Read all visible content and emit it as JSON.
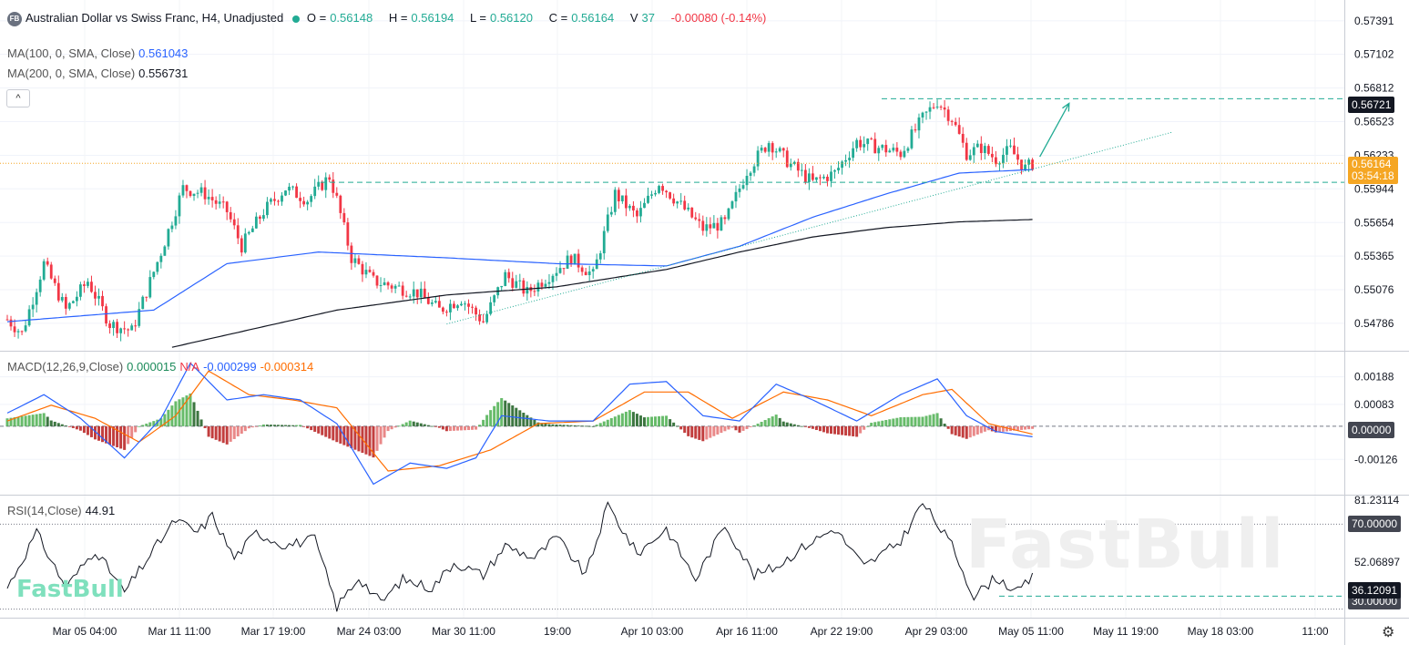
{
  "header": {
    "logo_text": "FB",
    "title": "Australian Dollar vs Swiss Franc, H4, Unadjusted",
    "o_label": "O =",
    "o_value": "0.56148",
    "h_label": "H =",
    "h_value": "0.56194",
    "l_label": "L =",
    "l_value": "0.56120",
    "c_label": "C =",
    "c_value": "0.56164",
    "v_label": "V",
    "v_value": "37",
    "change": "-0.00080 (-0.14%)"
  },
  "ma100": {
    "label": "MA(100, 0, SMA, Close)",
    "value": "0.561043",
    "color": "#2962ff"
  },
  "ma200": {
    "label": "MA(200, 0, SMA, Close)",
    "value": "0.556731",
    "color": "#131722"
  },
  "collapse_glyph": "^",
  "macd_legend": {
    "label": "MACD(12,26,9,Close)",
    "hist": "0.000015",
    "na": "N/A",
    "macd": "-0.000299",
    "signal": "-0.000314"
  },
  "rsi_legend": {
    "label": "RSI(14,Close)",
    "value": "44.91"
  },
  "watermark": {
    "big": "FastBull",
    "small": "FastBull"
  },
  "gear_icon": "⚙",
  "colors": {
    "up": "#22ab94",
    "down": "#f23645",
    "macd_line": "#2962ff",
    "signal_line": "#ff6d00",
    "level_line": "#22ab94"
  },
  "price_boxes": {
    "level_top": "0.56721",
    "current": "0.56164",
    "countdown": "03:54:18",
    "macd_zero": "0.00000",
    "rsi_70": "70.00000",
    "rsi_36": "36.12091",
    "rsi_30": "30.00000"
  },
  "chart_data": [
    {
      "type": "candlestick",
      "title": "Australian Dollar vs Swiss Franc, H4, Unadjusted",
      "y_ticks": [
        "0.57391",
        "0.57102",
        "0.56812",
        "0.56523",
        "0.56233",
        "0.55944",
        "0.55654",
        "0.55365",
        "0.55076",
        "0.54786"
      ],
      "y_tick_values": [
        0.57391,
        0.57102,
        0.56812,
        0.56523,
        0.56233,
        0.55944,
        0.55654,
        0.55365,
        0.55076,
        0.54786
      ],
      "ylim": [
        0.5455,
        0.5757
      ],
      "x_ticks": [
        "Mar 05 04:00",
        "Mar 11 11:00",
        "Mar 17 19:00",
        "Mar 24 03:00",
        "Mar 30 11:00",
        "19:00",
        "Apr 10 03:00",
        "Apr 16 11:00",
        "Apr 22 19:00",
        "Apr 29 03:00",
        "May 05 11:00",
        "May 11 19:00",
        "May 18 03:00",
        "11:00"
      ],
      "anchors": [
        [
          0,
          0.5482
        ],
        [
          4,
          0.547
        ],
        [
          10,
          0.553
        ],
        [
          16,
          0.549
        ],
        [
          22,
          0.5515
        ],
        [
          28,
          0.5478
        ],
        [
          34,
          0.5472
        ],
        [
          42,
          0.554
        ],
        [
          48,
          0.5595
        ],
        [
          54,
          0.559
        ],
        [
          60,
          0.5575
        ],
        [
          64,
          0.5545
        ],
        [
          70,
          0.5575
        ],
        [
          76,
          0.5595
        ],
        [
          82,
          0.5585
        ],
        [
          88,
          0.5605
        ],
        [
          90,
          0.5585
        ],
        [
          94,
          0.5535
        ],
        [
          100,
          0.5515
        ],
        [
          106,
          0.551
        ],
        [
          112,
          0.5505
        ],
        [
          118,
          0.549
        ],
        [
          124,
          0.55
        ],
        [
          130,
          0.548
        ],
        [
          136,
          0.552
        ],
        [
          142,
          0.5505
        ],
        [
          148,
          0.552
        ],
        [
          154,
          0.5535
        ],
        [
          160,
          0.552
        ],
        [
          166,
          0.559
        ],
        [
          172,
          0.557
        ],
        [
          178,
          0.56
        ],
        [
          184,
          0.558
        ],
        [
          190,
          0.556
        ],
        [
          196,
          0.5565
        ],
        [
          202,
          0.561
        ],
        [
          208,
          0.5635
        ],
        [
          214,
          0.5615
        ],
        [
          220,
          0.56
        ],
        [
          226,
          0.5608
        ],
        [
          232,
          0.5635
        ],
        [
          238,
          0.563
        ],
        [
          244,
          0.5625
        ],
        [
          250,
          0.5655
        ],
        [
          254,
          0.567
        ],
        [
          258,
          0.5655
        ],
        [
          262,
          0.5625
        ],
        [
          266,
          0.563
        ],
        [
          270,
          0.562
        ],
        [
          274,
          0.5628
        ],
        [
          278,
          0.5612
        ],
        [
          280,
          0.5616
        ]
      ],
      "candle_count": 281,
      "ma100_anchors": [
        [
          0,
          0.548
        ],
        [
          40,
          0.549
        ],
        [
          60,
          0.553
        ],
        [
          85,
          0.554
        ],
        [
          120,
          0.5535
        ],
        [
          150,
          0.553
        ],
        [
          180,
          0.5528
        ],
        [
          200,
          0.5545
        ],
        [
          220,
          0.557
        ],
        [
          240,
          0.559
        ],
        [
          260,
          0.5608
        ],
        [
          280,
          0.5611
        ]
      ],
      "ma200_anchors": [
        [
          45,
          0.5458
        ],
        [
          90,
          0.549
        ],
        [
          120,
          0.5503
        ],
        [
          150,
          0.551
        ],
        [
          180,
          0.5525
        ],
        [
          200,
          0.554
        ],
        [
          220,
          0.5553
        ],
        [
          240,
          0.5561
        ],
        [
          260,
          0.5566
        ],
        [
          280,
          0.5568
        ]
      ],
      "trendline": [
        [
          120,
          0.5478
        ],
        [
          318,
          0.5643
        ]
      ],
      "support_level": 0.56,
      "resistance_level": 0.5672,
      "arrow": [
        [
          282,
          0.5622
        ],
        [
          290,
          0.5668
        ]
      ],
      "current_price": 0.56164
    },
    {
      "type": "macd",
      "title": "MACD(12,26,9,Close)",
      "y_ticks": [
        "0.00188",
        "0.00083",
        "0.00000",
        "-0.00126"
      ],
      "y_tick_values": [
        0.00188,
        0.00083,
        0.0,
        -0.00126
      ],
      "ylim": [
        -0.0026,
        0.0028
      ],
      "macd_anchors": [
        [
          0,
          0.0005
        ],
        [
          10,
          0.0012
        ],
        [
          20,
          0.0003
        ],
        [
          32,
          -0.0012
        ],
        [
          42,
          0.0003
        ],
        [
          50,
          0.0024
        ],
        [
          60,
          0.001
        ],
        [
          70,
          0.0012
        ],
        [
          80,
          0.001
        ],
        [
          90,
          0.0001
        ],
        [
          100,
          -0.0022
        ],
        [
          110,
          -0.0014
        ],
        [
          120,
          -0.0016
        ],
        [
          128,
          -0.0012
        ],
        [
          135,
          0.0004
        ],
        [
          148,
          0.0002
        ],
        [
          160,
          0.0002
        ],
        [
          170,
          0.0016
        ],
        [
          180,
          0.0017
        ],
        [
          190,
          0.0004
        ],
        [
          200,
          0.0002
        ],
        [
          210,
          0.0016
        ],
        [
          220,
          0.001
        ],
        [
          232,
          0.0002
        ],
        [
          244,
          0.0012
        ],
        [
          254,
          0.0018
        ],
        [
          262,
          0.0004
        ],
        [
          270,
          -0.0002
        ],
        [
          280,
          -0.0004
        ]
      ],
      "signal_anchors": [
        [
          0,
          0.0002
        ],
        [
          12,
          0.0008
        ],
        [
          24,
          0.0003
        ],
        [
          36,
          -0.0006
        ],
        [
          46,
          0.0004
        ],
        [
          55,
          0.0021
        ],
        [
          66,
          0.0012
        ],
        [
          78,
          0.001
        ],
        [
          90,
          0.0007
        ],
        [
          104,
          -0.0017
        ],
        [
          118,
          -0.0015
        ],
        [
          132,
          -0.0009
        ],
        [
          145,
          0.0001
        ],
        [
          160,
          0.0002
        ],
        [
          174,
          0.0013
        ],
        [
          186,
          0.0013
        ],
        [
          198,
          0.0003
        ],
        [
          212,
          0.0013
        ],
        [
          224,
          0.001
        ],
        [
          236,
          0.0004
        ],
        [
          250,
          0.0012
        ],
        [
          258,
          0.0014
        ],
        [
          268,
          0.0001
        ],
        [
          280,
          -0.0003
        ]
      ]
    },
    {
      "type": "line",
      "title": "RSI(14,Close)",
      "y_ticks": [
        "81.23114",
        "70.00000",
        "52.06897",
        "36.12091",
        "30.00000"
      ],
      "y_tick_values": [
        81.23114,
        70.0,
        52.06897,
        36.12091,
        30.0
      ],
      "ylim": [
        26,
        83
      ],
      "levels": [
        70,
        30
      ],
      "anchors": [
        [
          0,
          40
        ],
        [
          8,
          66
        ],
        [
          16,
          40
        ],
        [
          24,
          58
        ],
        [
          32,
          38
        ],
        [
          40,
          58
        ],
        [
          46,
          72
        ],
        [
          52,
          66
        ],
        [
          56,
          74
        ],
        [
          62,
          54
        ],
        [
          68,
          66
        ],
        [
          76,
          60
        ],
        [
          84,
          63
        ],
        [
          90,
          31
        ],
        [
          96,
          45
        ],
        [
          102,
          33
        ],
        [
          108,
          44
        ],
        [
          116,
          40
        ],
        [
          122,
          52
        ],
        [
          130,
          46
        ],
        [
          136,
          60
        ],
        [
          144,
          54
        ],
        [
          150,
          64
        ],
        [
          158,
          46
        ],
        [
          164,
          79
        ],
        [
          172,
          56
        ],
        [
          180,
          68
        ],
        [
          188,
          44
        ],
        [
          196,
          70
        ],
        [
          204,
          46
        ],
        [
          210,
          50
        ],
        [
          218,
          60
        ],
        [
          226,
          68
        ],
        [
          234,
          50
        ],
        [
          244,
          62
        ],
        [
          250,
          80
        ],
        [
          258,
          60
        ],
        [
          264,
          36
        ],
        [
          270,
          45
        ],
        [
          276,
          38
        ],
        [
          280,
          45
        ]
      ],
      "current_value": 44.91
    }
  ]
}
